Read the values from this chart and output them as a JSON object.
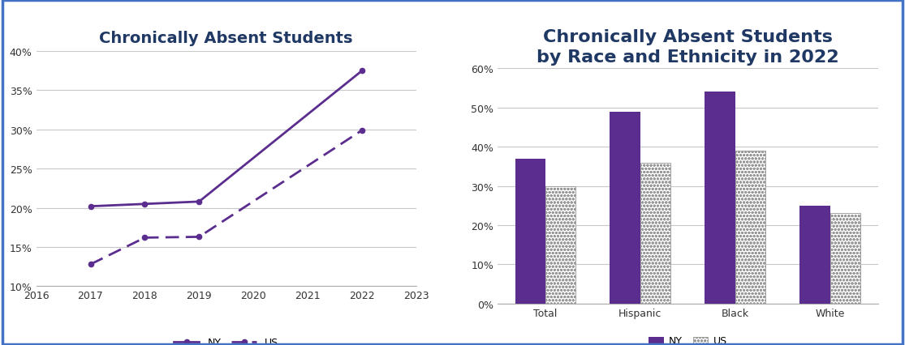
{
  "line_title": "Chronically Absent Students",
  "bar_title": "Chronically Absent Students\nby Race and Ethnicity in 2022",
  "line_years": [
    2017,
    2018,
    2019,
    2022
  ],
  "ny_values": [
    0.202,
    0.205,
    0.208,
    0.375
  ],
  "us_values": [
    0.128,
    0.162,
    0.163,
    0.299
  ],
  "line_xlim": [
    2016,
    2023
  ],
  "line_ylim": [
    0.1,
    0.4
  ],
  "line_yticks": [
    0.1,
    0.15,
    0.2,
    0.25,
    0.3,
    0.35,
    0.4
  ],
  "line_xticks": [
    2016,
    2017,
    2018,
    2019,
    2020,
    2021,
    2022,
    2023
  ],
  "bar_categories": [
    "Total",
    "Hispanic",
    "Black",
    "White"
  ],
  "bar_ny": [
    0.37,
    0.49,
    0.54,
    0.25
  ],
  "bar_us": [
    0.3,
    0.36,
    0.39,
    0.23
  ],
  "bar_ylim": [
    0,
    0.6
  ],
  "bar_yticks": [
    0.0,
    0.1,
    0.2,
    0.3,
    0.4,
    0.5,
    0.6
  ],
  "purple_solid": "#5B2D8E",
  "border_color": "#4472C4",
  "bg_color": "#FFFFFF",
  "outer_bg": "#E8E8E8",
  "title_color": "#1F3864",
  "grid_color": "#C8C8C8",
  "tick_fontsize": 9,
  "legend_fontsize": 9,
  "title_fontsize_line": 14,
  "title_fontsize_bar": 16
}
